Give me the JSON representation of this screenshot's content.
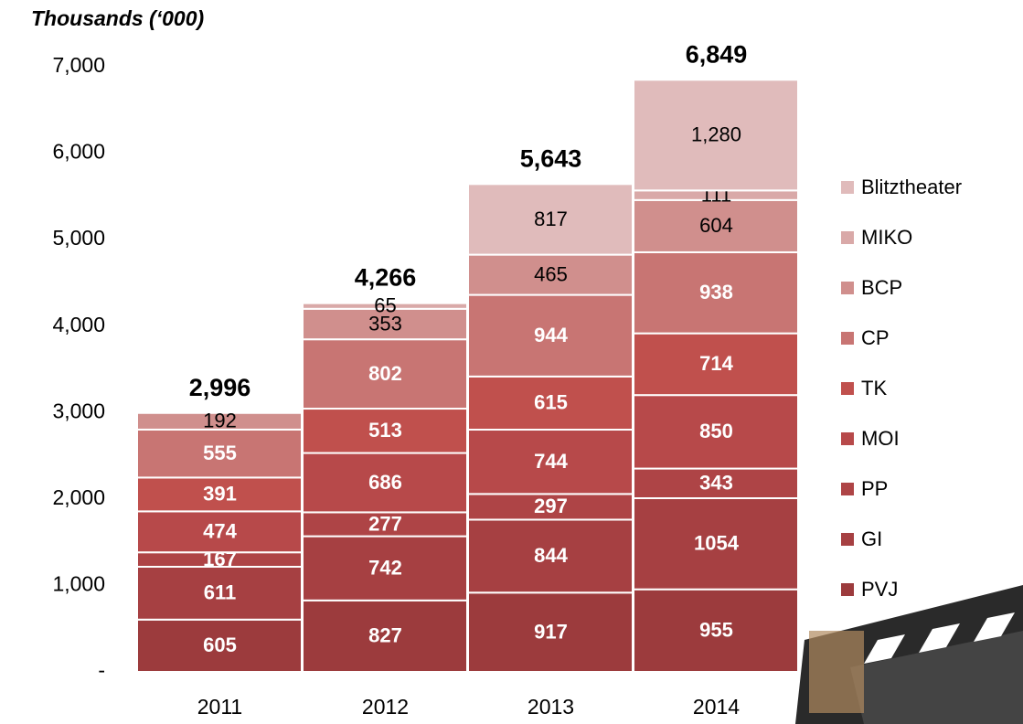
{
  "chart_data": {
    "type": "stacked_bar",
    "title": "Thousands (‘000)",
    "categories": [
      "2011",
      "2012",
      "2013",
      "2014"
    ],
    "series": [
      {
        "name": "PVJ",
        "color": "#9c3b3d",
        "values": [
          605,
          827,
          917,
          955
        ]
      },
      {
        "name": "GI",
        "color": "#a64042",
        "values": [
          611,
          742,
          844,
          1054
        ]
      },
      {
        "name": "PP",
        "color": "#ae4446",
        "values": [
          167,
          277,
          297,
          343
        ]
      },
      {
        "name": "MOI",
        "color": "#b7494a",
        "values": [
          474,
          686,
          744,
          850
        ]
      },
      {
        "name": "TK",
        "color": "#c0504d",
        "values": [
          391,
          513,
          615,
          714
        ]
      },
      {
        "name": "CP",
        "color": "#c87573",
        "values": [
          555,
          802,
          944,
          938
        ]
      },
      {
        "name": "BCP",
        "color": "#d08f8d",
        "values": [
          192,
          353,
          465,
          604
        ]
      },
      {
        "name": "MIKO",
        "color": "#d9a9a8",
        "values": [
          null,
          65,
          null,
          111
        ]
      },
      {
        "name": "Blitztheater",
        "color": "#e0bbbb",
        "values": [
          null,
          null,
          817,
          1280
        ],
        "value_labels": [
          null,
          null,
          "817",
          "1,280"
        ]
      }
    ],
    "totals": {
      "values": [
        2996,
        4266,
        5643,
        6849
      ],
      "value_labels": [
        "2,996",
        "4,266",
        "5,643",
        "6,849"
      ]
    },
    "ylim": [
      0,
      7000
    ],
    "yticks": [
      {
        "value": 0,
        "label": "-"
      },
      {
        "value": 1000,
        "label": "1,000"
      },
      {
        "value": 2000,
        "label": "2,000"
      },
      {
        "value": 3000,
        "label": "3,000"
      },
      {
        "value": 4000,
        "label": "4,000"
      },
      {
        "value": 5000,
        "label": "5,000"
      },
      {
        "value": 6000,
        "label": "6,000"
      },
      {
        "value": 7000,
        "label": "7,000"
      }
    ],
    "legend": "right"
  }
}
